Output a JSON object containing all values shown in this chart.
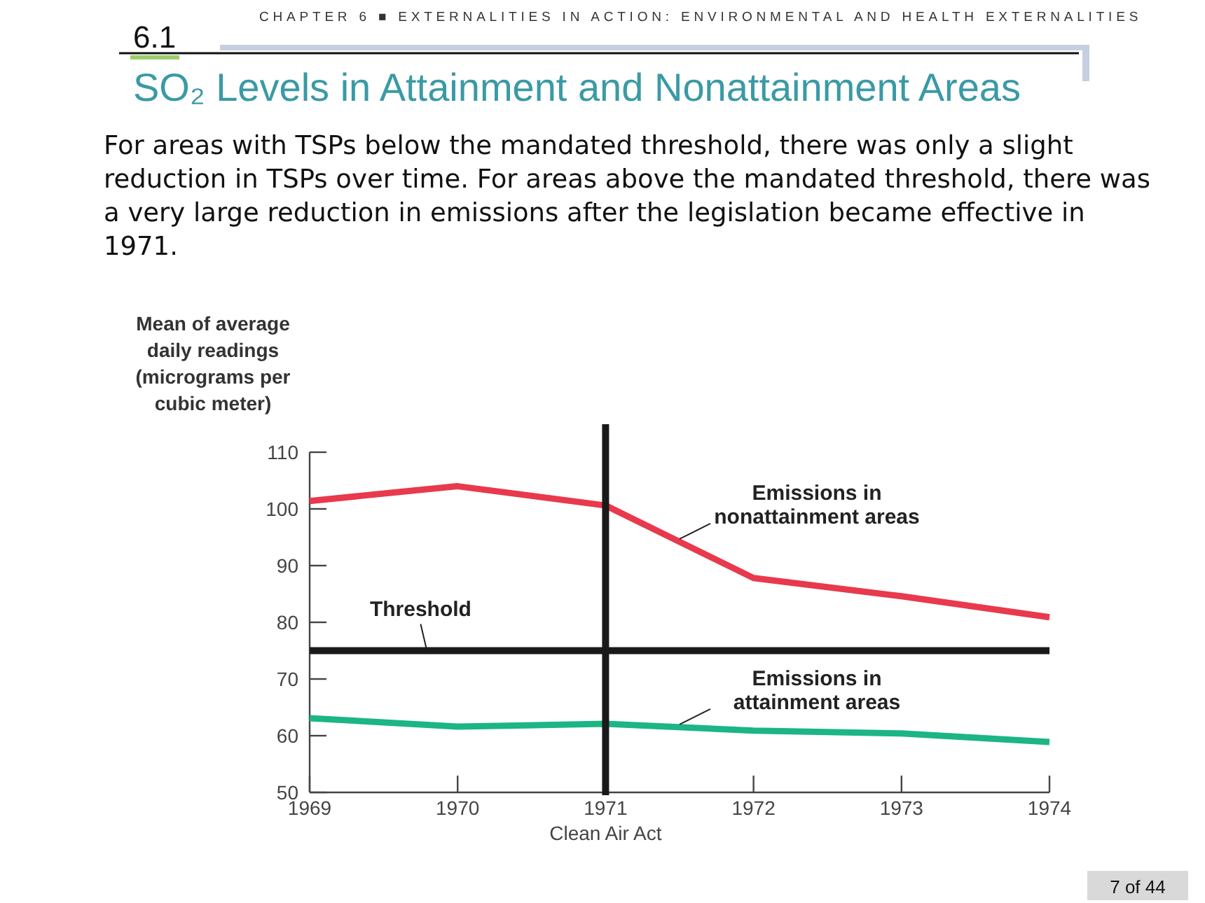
{
  "chart_data": {
    "type": "line",
    "title": "SO₂ Levels in Attainment and Nonattainment Areas",
    "subtitle": "For areas with TSPs below the mandated threshold, there was only a slight reduction in TSPs over time. For areas above the mandated threshold, there was a very large reduction in emissions after the legislation became effective in 1971.",
    "ylabel": "Mean of average daily readings (micrograms per cubic meter)",
    "annotations": [
      "CHAPTER 6 ■ EXTERNALITIES IN ACTION: ENVIRONMENTAL AND HEALTH EXTERNALITIES",
      "6.1",
      "7 of 44"
    ],
    "x": [
      1969,
      1970,
      1971,
      1972,
      1973,
      1974
    ],
    "series": [
      {
        "name": "Emissions in nonattainment areas",
        "color": "#e8394d",
        "values": [
          101.4,
          104,
          100.6,
          87.8,
          84.6,
          80.9
        ]
      },
      {
        "name": "Emissions in attainment areas",
        "color": "#1cb585",
        "values": [
          63.1,
          61.6,
          62.1,
          60.9,
          60.4,
          58.9
        ]
      }
    ],
    "xlim": [
      1969,
      1974
    ],
    "xticks": [
      1969,
      1970,
      1971,
      1972,
      1973,
      1974
    ],
    "ylim": [
      50,
      110
    ],
    "yticks": [
      50,
      60,
      70,
      80,
      90,
      100,
      110
    ],
    "ref_lines": [
      {
        "axis": "y",
        "value": 75,
        "label": "Threshold",
        "color": "#1a1a1a"
      },
      {
        "axis": "x",
        "value": 1971,
        "label": "Clean Air Act",
        "color": "#1a1a1a"
      }
    ],
    "marker": "none",
    "line_style": "solid"
  }
}
